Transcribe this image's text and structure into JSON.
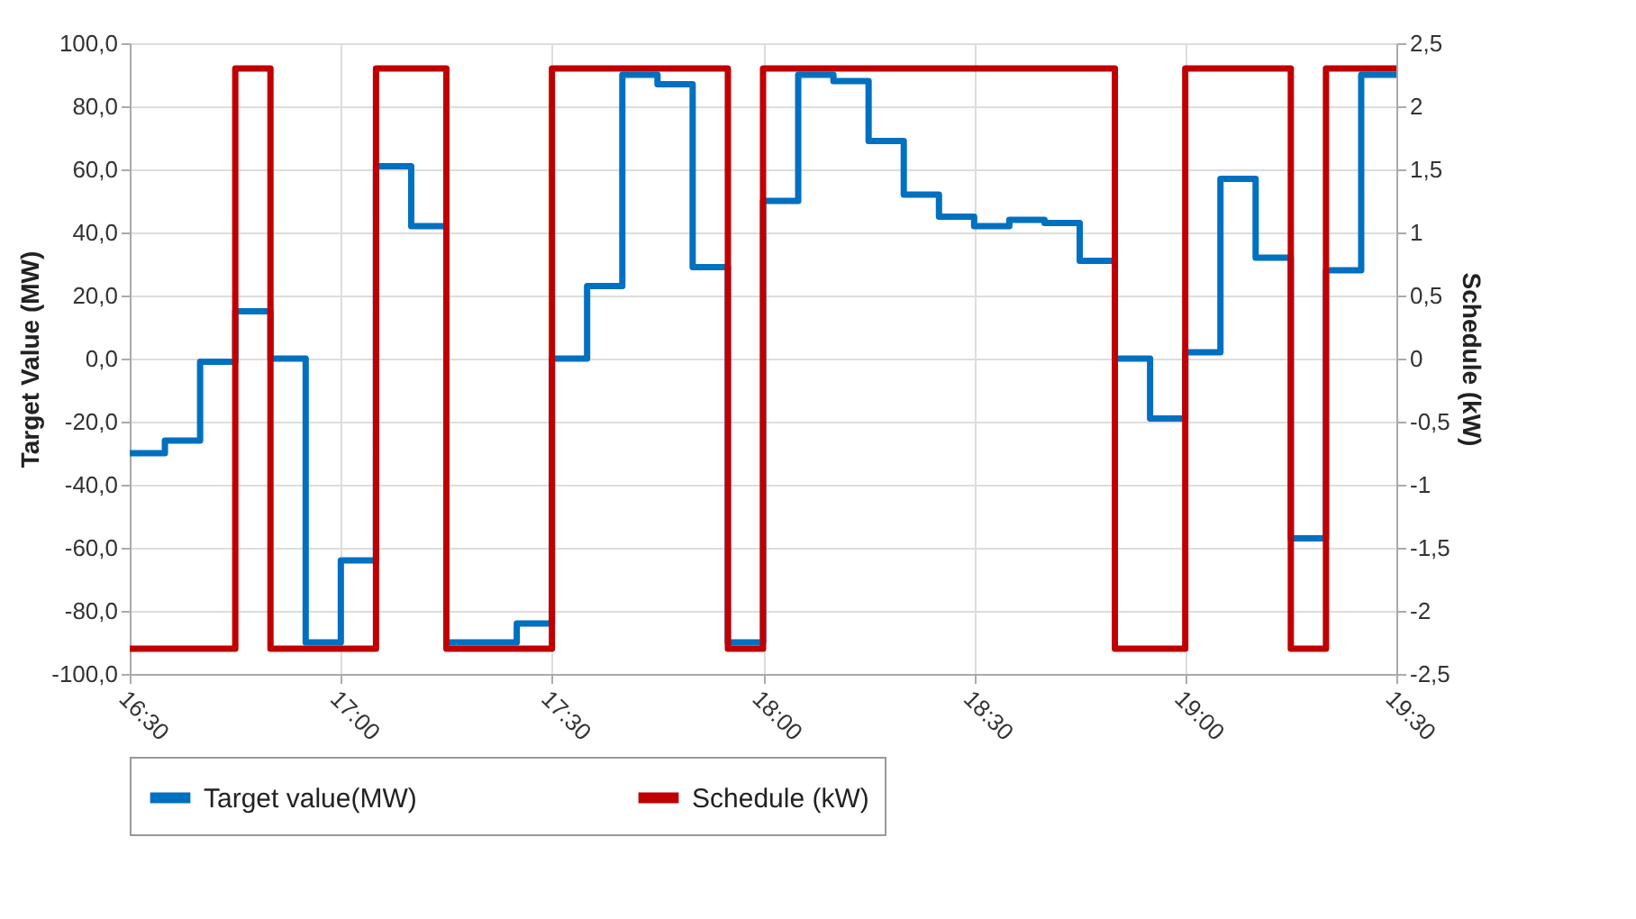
{
  "chart_data": {
    "type": "step",
    "x": [
      16.5,
      16.5833,
      16.6667,
      16.75,
      16.8333,
      16.9167,
      17.0,
      17.0833,
      17.1667,
      17.25,
      17.3333,
      17.4167,
      17.5,
      17.5833,
      17.6667,
      17.75,
      17.8333,
      17.9167,
      18.0,
      18.0833,
      18.1667,
      18.25,
      18.3333,
      18.4167,
      18.5,
      18.5833,
      18.6667,
      18.75,
      18.8333,
      18.9167,
      19.0,
      19.0833,
      19.1667,
      19.25,
      19.3333,
      19.4167,
      19.5
    ],
    "series": [
      {
        "name": "Target value(MW)",
        "color": "#0070c0",
        "values": [
          -30,
          -26,
          -1,
          15,
          0,
          -90,
          -64,
          61,
          42,
          -90,
          -90,
          -84,
          0,
          23,
          90,
          87,
          29,
          -90,
          50,
          90,
          88,
          69,
          52,
          45,
          42,
          44,
          43,
          31,
          0,
          -19,
          2,
          57,
          32,
          -57,
          28,
          90,
          90
        ]
      },
      {
        "name": "Schedule (kW)",
        "color": "#c00000",
        "axis": "y2",
        "values": [
          -2.3,
          -2.3,
          -2.3,
          2.3,
          -2.3,
          -2.3,
          -2.3,
          2.3,
          2.3,
          -2.3,
          -2.3,
          -2.3,
          2.3,
          2.3,
          2.3,
          2.3,
          2.3,
          -2.3,
          2.3,
          2.3,
          2.3,
          2.3,
          2.3,
          2.3,
          2.3,
          2.3,
          2.3,
          2.3,
          -2.3,
          -2.3,
          2.3,
          2.3,
          2.3,
          -2.3,
          2.3,
          2.3,
          2.3
        ]
      }
    ],
    "ylabel": "Target Value (MW)",
    "y2label": "Schedule (kW)",
    "xlim": [
      16.5,
      19.5
    ],
    "xticks": [
      {
        "value": 16.5,
        "label": "16:30"
      },
      {
        "value": 17,
        "label": "17:00"
      },
      {
        "value": 17.5,
        "label": "17:30"
      },
      {
        "value": 18,
        "label": "18:00"
      },
      {
        "value": 18.5,
        "label": "18:30"
      },
      {
        "value": 19,
        "label": "19:00"
      },
      {
        "value": 19.5,
        "label": "19:30"
      }
    ],
    "ylim": [
      -100,
      100
    ],
    "yticks": [
      {
        "value": -100,
        "label": "-100,0"
      },
      {
        "value": -80,
        "label": "-80,0"
      },
      {
        "value": -60,
        "label": "-60,0"
      },
      {
        "value": -40,
        "label": "-40,0"
      },
      {
        "value": -20,
        "label": "-20,0"
      },
      {
        "value": 0,
        "label": "0,0"
      },
      {
        "value": 20,
        "label": "20,0"
      },
      {
        "value": 40,
        "label": "40,0"
      },
      {
        "value": 60,
        "label": "60,0"
      },
      {
        "value": 80,
        "label": "80,0"
      },
      {
        "value": 100,
        "label": "100,0"
      }
    ],
    "y2lim": [
      -2.5,
      2.5
    ],
    "y2ticks": [
      {
        "value": -2.5,
        "label": "-2,5"
      },
      -2,
      {
        "value": -1.5,
        "label": "-1,5"
      },
      -1,
      {
        "value": -0.5,
        "label": "-0,5"
      },
      0,
      {
        "value": 0.5,
        "label": "0,5"
      },
      1,
      {
        "value": 1.5,
        "label": "1,5"
      },
      2,
      {
        "value": 2.5,
        "label": "2,5"
      }
    ],
    "grid": true,
    "legend": "bottom",
    "marker": "none",
    "line_style": "solid"
  }
}
